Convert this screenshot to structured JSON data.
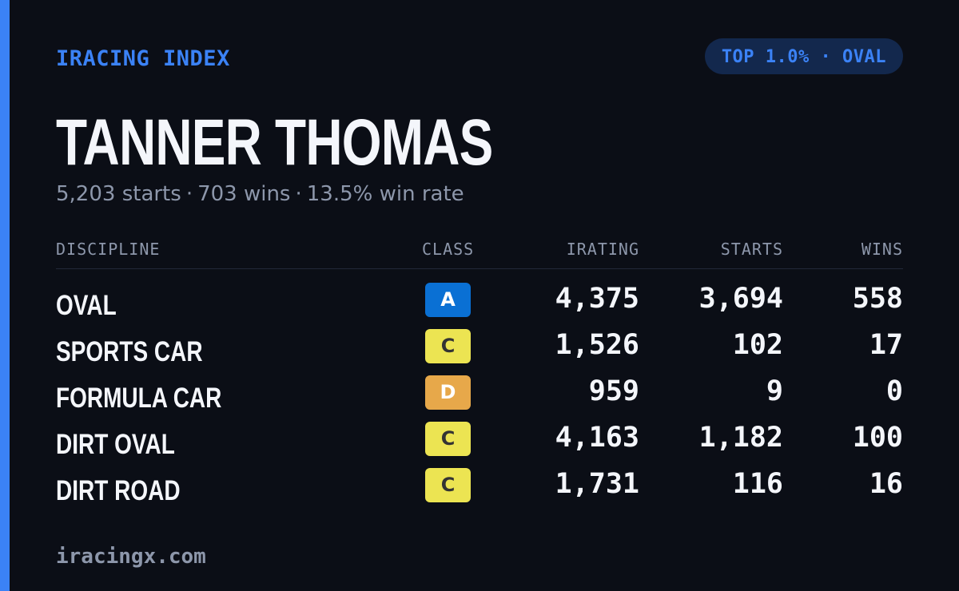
{
  "brand": "IRACING INDEX",
  "badge": "TOP 1.0% · OVAL",
  "driver": {
    "name": "TANNER THOMAS",
    "starts_text": "5,203 starts",
    "wins_text": "703 wins",
    "win_rate_text": "13.5% win rate",
    "separator": "·"
  },
  "table": {
    "headers": {
      "discipline": "DISCIPLINE",
      "class": "CLASS",
      "irating": "IRATING",
      "starts": "STARTS",
      "wins": "WINS"
    },
    "rows": [
      {
        "discipline": "OVAL",
        "class": "A",
        "irating": "4,375",
        "starts": "3,694",
        "wins": "558"
      },
      {
        "discipline": "SPORTS CAR",
        "class": "C",
        "irating": "1,526",
        "starts": "102",
        "wins": "17"
      },
      {
        "discipline": "FORMULA CAR",
        "class": "D",
        "irating": "959",
        "starts": "9",
        "wins": "0"
      },
      {
        "discipline": "DIRT OVAL",
        "class": "C",
        "irating": "4,163",
        "starts": "1,182",
        "wins": "100"
      },
      {
        "discipline": "DIRT ROAD",
        "class": "C",
        "irating": "1,731",
        "starts": "116",
        "wins": "16"
      }
    ]
  },
  "class_colors": {
    "A": {
      "bg": "#0a70d4",
      "fg": "#ffffff"
    },
    "C": {
      "bg": "#ece452",
      "fg": "#333333"
    },
    "D": {
      "bg": "#e7a84a",
      "fg": "#ffffff"
    }
  },
  "colors": {
    "accent": "#3b82f6",
    "background": "#0b0e16",
    "badge_bg": "#13284d",
    "text": "#f4f6fb",
    "muted": "#8d97ab"
  },
  "footer": "iracingx.com"
}
